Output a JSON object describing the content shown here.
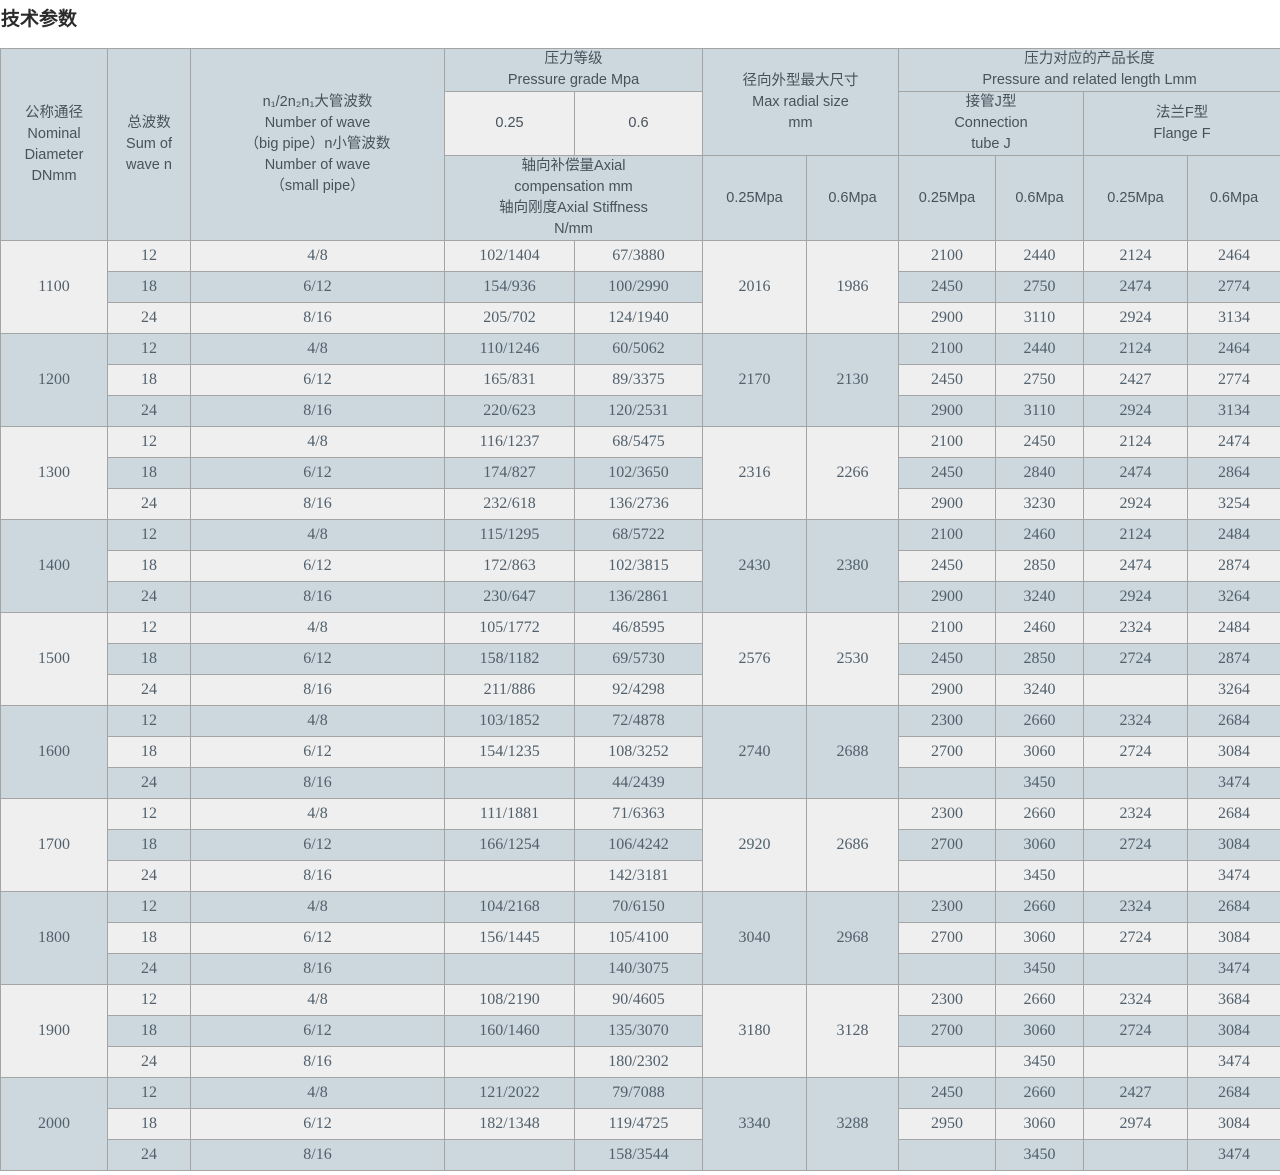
{
  "title": "技术参数",
  "colors": {
    "band_blue": "#cdd7de",
    "band_light": "#efefef",
    "border": "#a4a4a4",
    "data_text": "#51606c",
    "header_text": "#47525b"
  },
  "table": {
    "header": {
      "dn": "公称通径\nNominal\nDiameter\nDNmm",
      "sum_wave": "总波数\nSum of\nwave n",
      "n_wave": "n₁/2n₂n₁大管波数\nNumber of wave\n（big pipe）n小管波数\nNumber of wave\n（small pipe）",
      "pressure_grade": "压力等级\nPressure grade Mpa",
      "p025": "0.25",
      "p06": "0.6",
      "axial": "轴向补偿量Axial\ncompensation mm\n轴向刚度Axial Stiffness\nN/mm",
      "radial": "径向外型最大尺寸\nMax radial size\nmm",
      "radial_025": "0.25Mpa",
      "radial_06": "0.6Mpa",
      "length": "压力对应的产品长度\nPressure and related length Lmm",
      "conn_j": "接管J型\nConnection\ntube J",
      "flange_f": "法兰F型\nFlange F",
      "j_025": "0.25Mpa",
      "j_06": "0.6Mpa",
      "f_025": "0.25Mpa",
      "f_06": "0.6Mpa"
    },
    "groups": [
      {
        "dn": "1100",
        "radial_025": "2016",
        "radial_06": "1986",
        "rows": [
          {
            "n": "12",
            "waves": "4/8",
            "c025": "102/1404",
            "c06": "67/3880",
            "j025": "2100",
            "j06": "2440",
            "f025": "2124",
            "f06": "2464"
          },
          {
            "n": "18",
            "waves": "6/12",
            "c025": "154/936",
            "c06": "100/2990",
            "j025": "2450",
            "j06": "2750",
            "f025": "2474",
            "f06": "2774"
          },
          {
            "n": "24",
            "waves": "8/16",
            "c025": "205/702",
            "c06": "124/1940",
            "j025": "2900",
            "j06": "3110",
            "f025": "2924",
            "f06": "3134"
          }
        ]
      },
      {
        "dn": "1200",
        "radial_025": "2170",
        "radial_06": "2130",
        "rows": [
          {
            "n": "12",
            "waves": "4/8",
            "c025": "110/1246",
            "c06": "60/5062",
            "j025": "2100",
            "j06": "2440",
            "f025": "2124",
            "f06": "2464"
          },
          {
            "n": "18",
            "waves": "6/12",
            "c025": "165/831",
            "c06": "89/3375",
            "j025": "2450",
            "j06": "2750",
            "f025": "2427",
            "f06": "2774"
          },
          {
            "n": "24",
            "waves": "8/16",
            "c025": "220/623",
            "c06": "120/2531",
            "j025": "2900",
            "j06": "3110",
            "f025": "2924",
            "f06": "3134"
          }
        ]
      },
      {
        "dn": "1300",
        "radial_025": "2316",
        "radial_06": "2266",
        "rows": [
          {
            "n": "12",
            "waves": "4/8",
            "c025": "116/1237",
            "c06": "68/5475",
            "j025": "2100",
            "j06": "2450",
            "f025": "2124",
            "f06": "2474"
          },
          {
            "n": "18",
            "waves": "6/12",
            "c025": "174/827",
            "c06": "102/3650",
            "j025": "2450",
            "j06": "2840",
            "f025": "2474",
            "f06": "2864"
          },
          {
            "n": "24",
            "waves": "8/16",
            "c025": "232/618",
            "c06": "136/2736",
            "j025": "2900",
            "j06": "3230",
            "f025": "2924",
            "f06": "3254"
          }
        ]
      },
      {
        "dn": "1400",
        "radial_025": "2430",
        "radial_06": "2380",
        "rows": [
          {
            "n": "12",
            "waves": "4/8",
            "c025": "115/1295",
            "c06": "68/5722",
            "j025": "2100",
            "j06": "2460",
            "f025": "2124",
            "f06": "2484"
          },
          {
            "n": "18",
            "waves": "6/12",
            "c025": "172/863",
            "c06": "102/3815",
            "j025": "2450",
            "j06": "2850",
            "f025": "2474",
            "f06": "2874"
          },
          {
            "n": "24",
            "waves": "8/16",
            "c025": "230/647",
            "c06": "136/2861",
            "j025": "2900",
            "j06": "3240",
            "f025": "2924",
            "f06": "3264"
          }
        ]
      },
      {
        "dn": "1500",
        "radial_025": "2576",
        "radial_06": "2530",
        "rows": [
          {
            "n": "12",
            "waves": "4/8",
            "c025": "105/1772",
            "c06": "46/8595",
            "j025": "2100",
            "j06": "2460",
            "f025": "2324",
            "f06": "2484"
          },
          {
            "n": "18",
            "waves": "6/12",
            "c025": "158/1182",
            "c06": "69/5730",
            "j025": "2450",
            "j06": "2850",
            "f025": "2724",
            "f06": "2874"
          },
          {
            "n": "24",
            "waves": "8/16",
            "c025": "211/886",
            "c06": "92/4298",
            "j025": "2900",
            "j06": "3240",
            "f025": "",
            "f06": "3264"
          }
        ]
      },
      {
        "dn": "1600",
        "radial_025": "2740",
        "radial_06": "2688",
        "rows": [
          {
            "n": "12",
            "waves": "4/8",
            "c025": "103/1852",
            "c06": "72/4878",
            "j025": "2300",
            "j06": "2660",
            "f025": "2324",
            "f06": "2684"
          },
          {
            "n": "18",
            "waves": "6/12",
            "c025": "154/1235",
            "c06": "108/3252",
            "j025": "2700",
            "j06": "3060",
            "f025": "2724",
            "f06": "3084"
          },
          {
            "n": "24",
            "waves": "8/16",
            "c025": "",
            "c06": "44/2439",
            "j025": "",
            "j06": "3450",
            "f025": "",
            "f06": "3474"
          }
        ]
      },
      {
        "dn": "1700",
        "radial_025": "2920",
        "radial_06": "2686",
        "rows": [
          {
            "n": "12",
            "waves": "4/8",
            "c025": "111/1881",
            "c06": "71/6363",
            "j025": "2300",
            "j06": "2660",
            "f025": "2324",
            "f06": "2684"
          },
          {
            "n": "18",
            "waves": "6/12",
            "c025": "166/1254",
            "c06": "106/4242",
            "j025": "2700",
            "j06": "3060",
            "f025": "2724",
            "f06": "3084"
          },
          {
            "n": "24",
            "waves": "8/16",
            "c025": "",
            "c06": "142/3181",
            "j025": "",
            "j06": "3450",
            "f025": "",
            "f06": "3474"
          }
        ]
      },
      {
        "dn": "1800",
        "radial_025": "3040",
        "radial_06": "2968",
        "rows": [
          {
            "n": "12",
            "waves": "4/8",
            "c025": "104/2168",
            "c06": "70/6150",
            "j025": "2300",
            "j06": "2660",
            "f025": "2324",
            "f06": "2684"
          },
          {
            "n": "18",
            "waves": "6/12",
            "c025": "156/1445",
            "c06": "105/4100",
            "j025": "2700",
            "j06": "3060",
            "f025": "2724",
            "f06": "3084"
          },
          {
            "n": "24",
            "waves": "8/16",
            "c025": "",
            "c06": "140/3075",
            "j025": "",
            "j06": "3450",
            "f025": "",
            "f06": "3474"
          }
        ]
      },
      {
        "dn": "1900",
        "radial_025": "3180",
        "radial_06": "3128",
        "rows": [
          {
            "n": "12",
            "waves": "4/8",
            "c025": "108/2190",
            "c06": "90/4605",
            "j025": "2300",
            "j06": "2660",
            "f025": "2324",
            "f06": "3684"
          },
          {
            "n": "18",
            "waves": "6/12",
            "c025": "160/1460",
            "c06": "135/3070",
            "j025": "2700",
            "j06": "3060",
            "f025": "2724",
            "f06": "3084"
          },
          {
            "n": "24",
            "waves": "8/16",
            "c025": "",
            "c06": "180/2302",
            "j025": "",
            "j06": "3450",
            "f025": "",
            "f06": "3474"
          }
        ]
      },
      {
        "dn": "2000",
        "radial_025": "3340",
        "radial_06": "3288",
        "rows": [
          {
            "n": "12",
            "waves": "4/8",
            "c025": "121/2022",
            "c06": "79/7088",
            "j025": "2450",
            "j06": "2660",
            "f025": "2427",
            "f06": "2684"
          },
          {
            "n": "18",
            "waves": "6/12",
            "c025": "182/1348",
            "c06": "119/4725",
            "j025": "2950",
            "j06": "3060",
            "f025": "2974",
            "f06": "3084"
          },
          {
            "n": "24",
            "waves": "8/16",
            "c025": "",
            "c06": "158/3544",
            "j025": "",
            "j06": "3450",
            "f025": "",
            "f06": "3474"
          }
        ]
      }
    ]
  }
}
